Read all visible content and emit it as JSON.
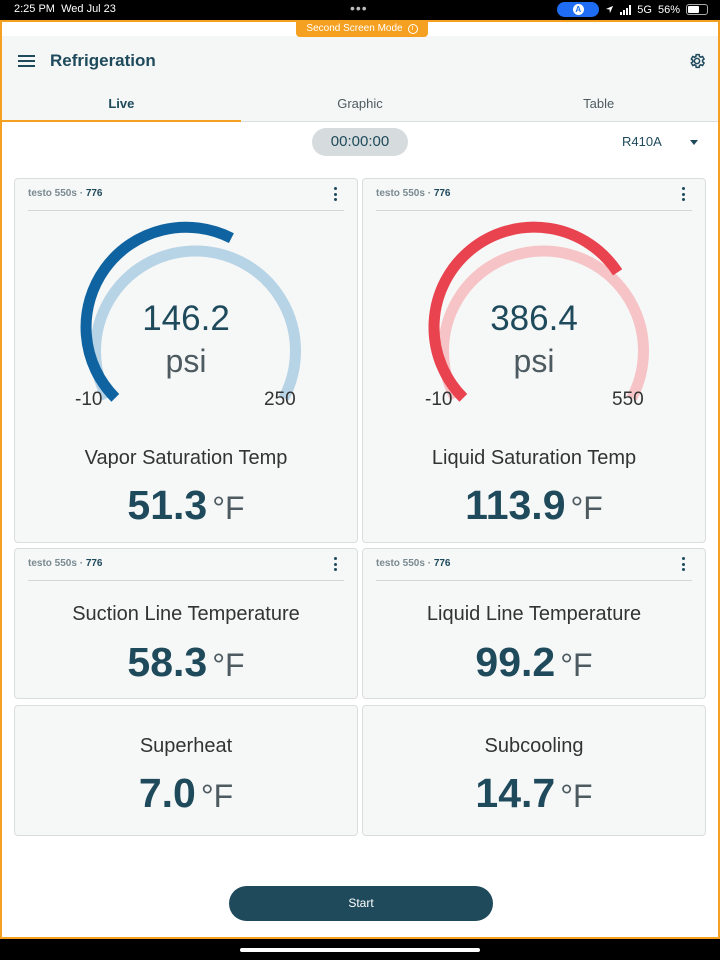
{
  "status_bar": {
    "time": "2:25 PM",
    "date": "Wed Jul 23",
    "dots": "•••",
    "network": "5G",
    "battery": "56%"
  },
  "banner": {
    "label": "Second Screen Mode",
    "icon": "info-icon"
  },
  "app": {
    "title": "Refrigeration",
    "menu_icon": "hamburger-menu-icon",
    "settings_icon": "gear-icon"
  },
  "tabs": [
    {
      "label": "Live",
      "active": true
    },
    {
      "label": "Graphic",
      "active": false
    },
    {
      "label": "Table",
      "active": false
    }
  ],
  "timer": "00:00:00",
  "refrigerant": {
    "value": "R410A"
  },
  "colors": {
    "primary": "#1e4a5c",
    "accent": "#f5a020",
    "gauge_low_primary": "#0e63a0",
    "gauge_low_rest": "#b7d3e6",
    "gauge_high_primary": "#e8434e",
    "gauge_high_rest": "#f6c4c7"
  },
  "cards": {
    "low_pressure": {
      "probe": "testo 550s ·",
      "probe_id": "776",
      "gauge": {
        "value": "146.2",
        "unit": "psi",
        "min": "-10",
        "max": "250",
        "fill_fraction": 0.6
      },
      "label": "Vapor Saturation Temp",
      "value": "51.3",
      "unit": "°F"
    },
    "high_pressure": {
      "probe": "testo 550s ·",
      "probe_id": "776",
      "gauge": {
        "value": "386.4",
        "unit": "psi",
        "min": "-10",
        "max": "550",
        "fill_fraction": 0.71
      },
      "label": "Liquid Saturation Temp",
      "value": "113.9",
      "unit": "°F"
    },
    "suction_temp": {
      "probe": "testo 550s ·",
      "probe_id": "776",
      "label": "Suction Line Temperature",
      "value": "58.3",
      "unit": "°F"
    },
    "liquid_temp": {
      "probe": "testo 550s ·",
      "probe_id": "776",
      "label": "Liquid Line Temperature",
      "value": "99.2",
      "unit": "°F"
    },
    "superheat": {
      "label": "Superheat",
      "value": "7.0",
      "unit": "°F"
    },
    "subcooling": {
      "label": "Subcooling",
      "value": "14.7",
      "unit": "°F"
    }
  },
  "start_button": {
    "label": "Start"
  }
}
